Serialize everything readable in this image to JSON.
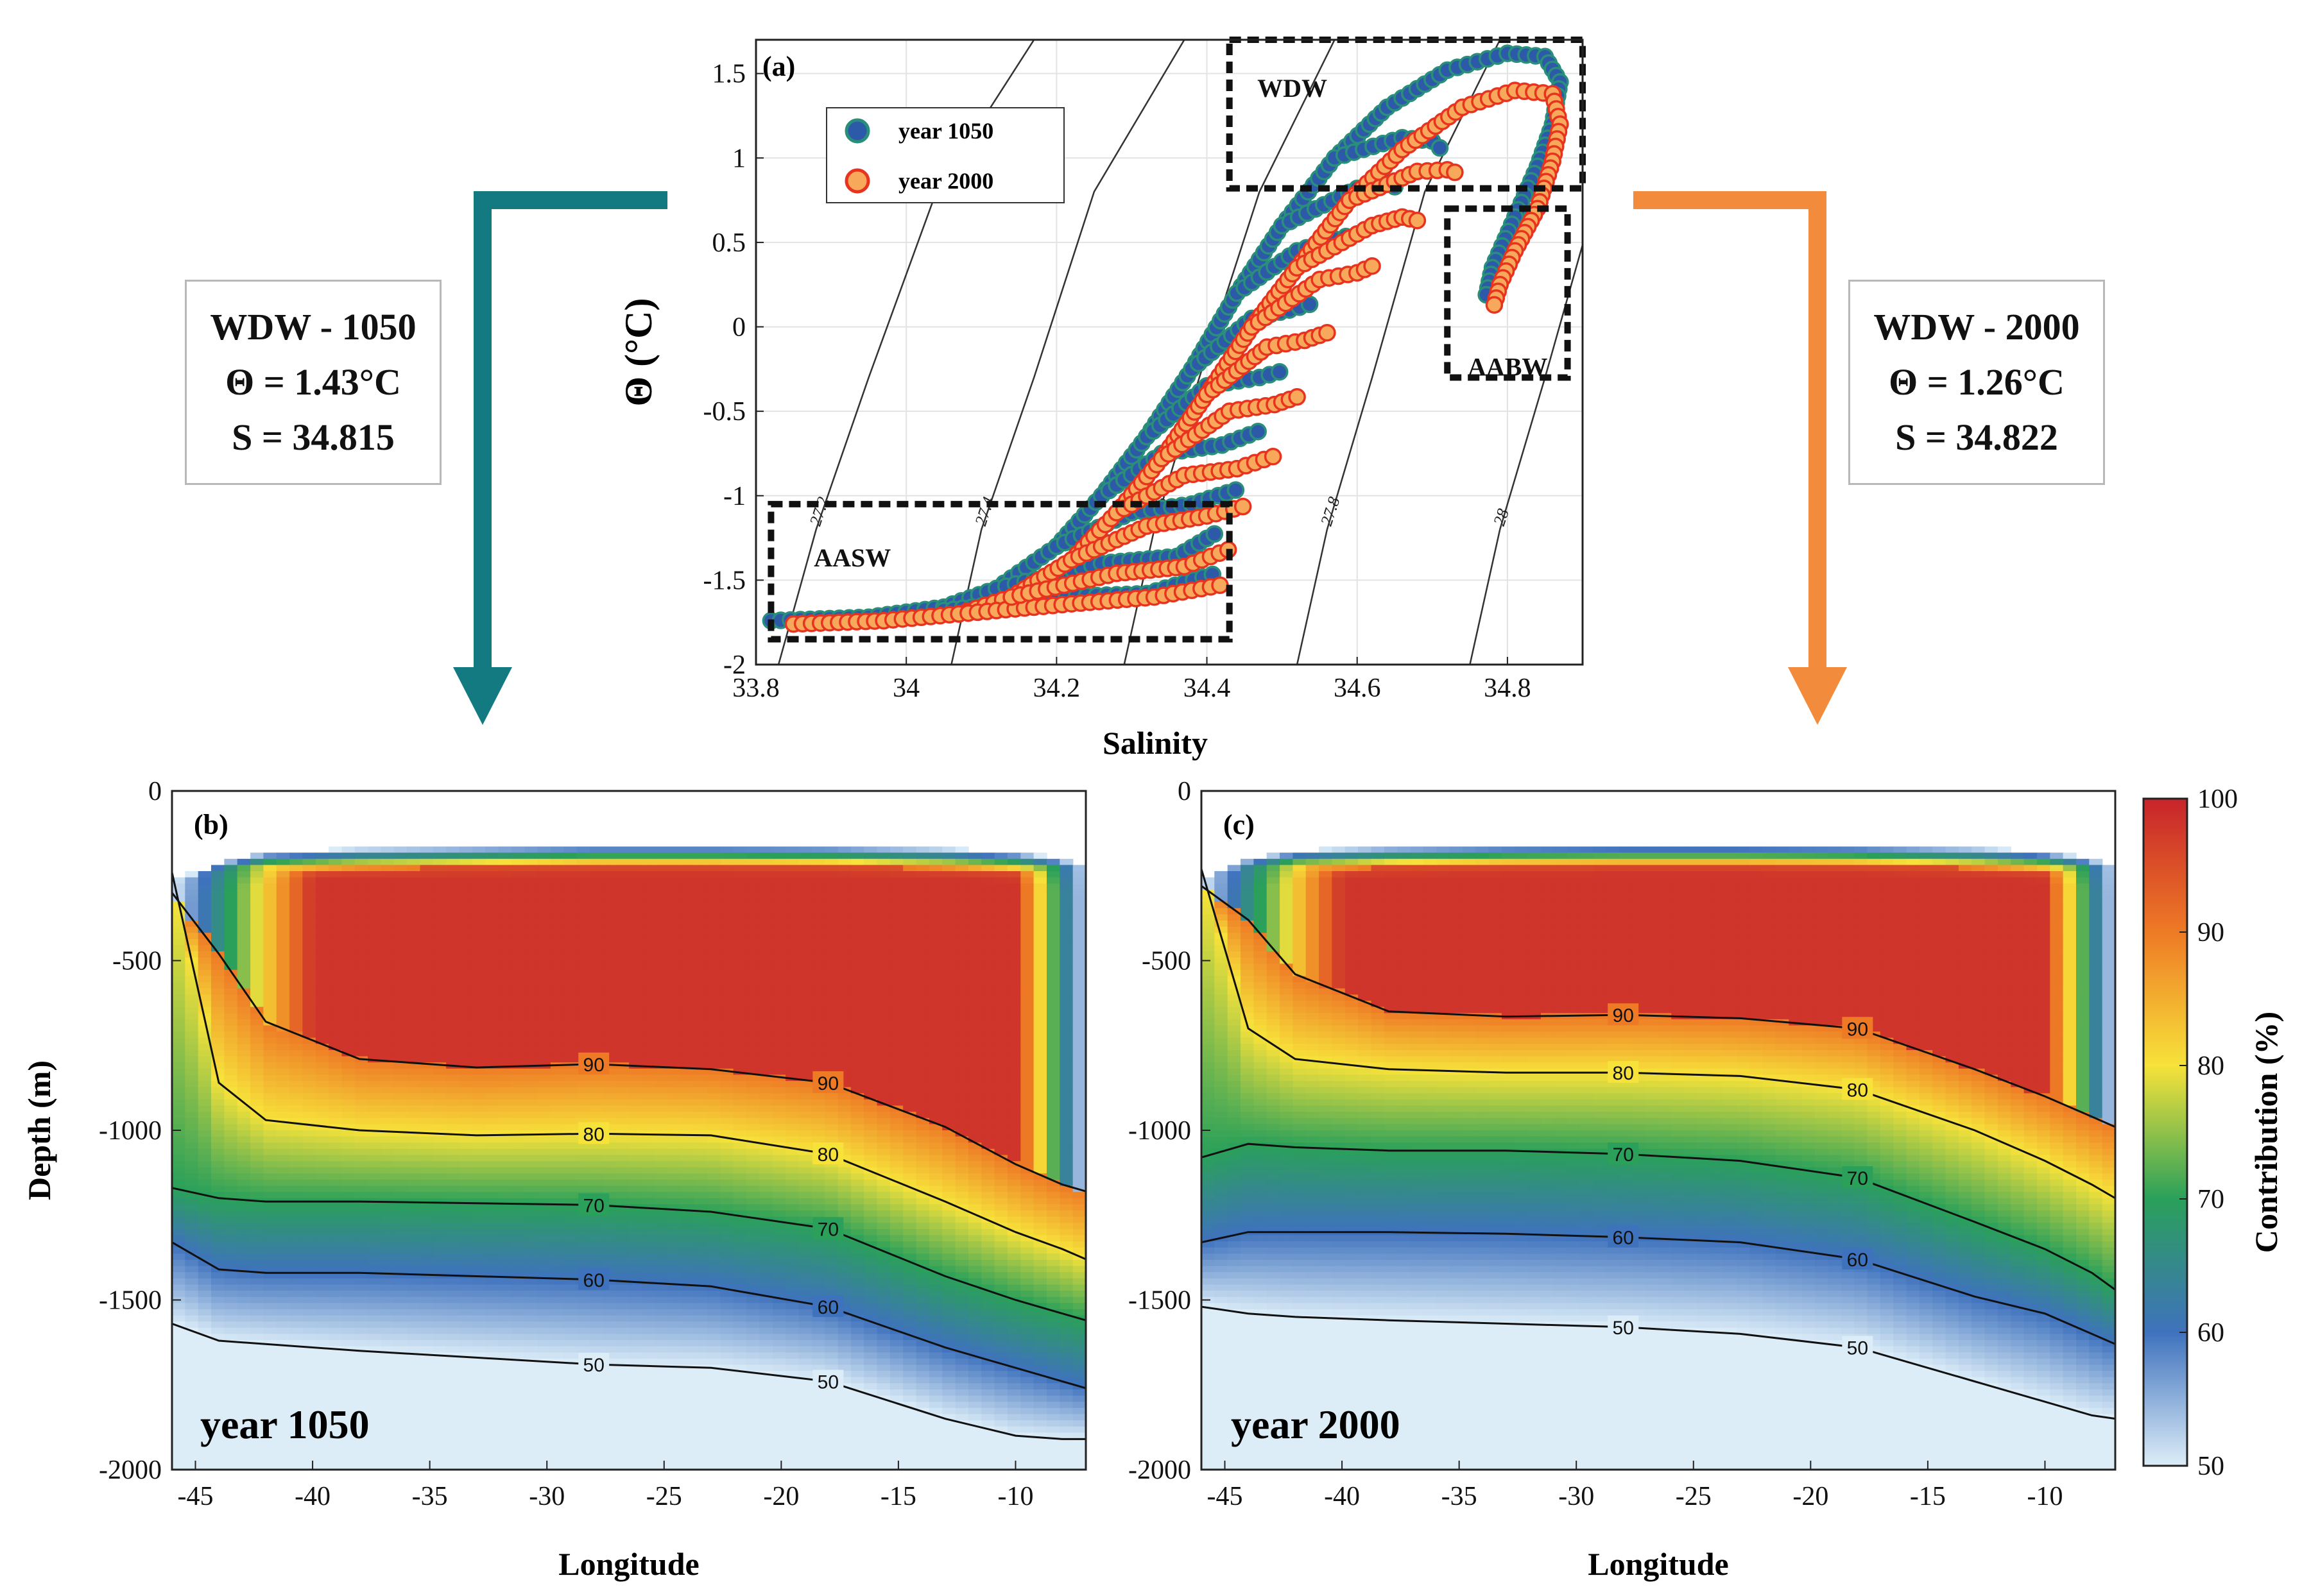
{
  "colors": {
    "teal_arrow": "#127a80",
    "orange_arrow": "#f28c3c",
    "series_1050_fill": "#2c5aa8",
    "series_1050_edge": "#2a8f7a",
    "series_2000_fill": "#f7a85a",
    "series_2000_edge": "#e8331f",
    "box_stroke": "#111111"
  },
  "info_boxes": [
    {
      "title": "WDW - 1050",
      "theta": "Θ = 1.43°C",
      "salinity": "S = 34.815"
    },
    {
      "title": "WDW - 2000",
      "theta": "Θ = 1.26°C",
      "salinity": "S = 34.822"
    }
  ],
  "chart_data": [
    {
      "type": "scatter",
      "panel_label": "(a)",
      "xlabel": "Salinity",
      "ylabel": "Θ (°C)",
      "xlim": [
        33.8,
        34.9
      ],
      "ylim": [
        -2,
        1.7
      ],
      "xticks": [
        33.8,
        34,
        34.2,
        34.4,
        34.6,
        34.8
      ],
      "xtick_labels": [
        "33.8",
        "34",
        "34.2",
        "34.4",
        "34.6",
        "34.8"
      ],
      "yticks": [
        -2,
        -1.5,
        -1,
        -0.5,
        0,
        0.5,
        1,
        1.5
      ],
      "ytick_labels": [
        "-2",
        "-1.5",
        "-1",
        "-0.5",
        "0",
        "0.5",
        "1",
        "1.5"
      ],
      "grid": true,
      "legend": {
        "position": "upper-left",
        "entries": [
          "year 1050",
          "year 2000"
        ]
      },
      "density_isopycnals": [
        {
          "label": "27.2",
          "points": [
            [
              33.83,
              -2
            ],
            [
              33.88,
              -1.2
            ],
            [
              33.95,
              -0.3
            ],
            [
              34.04,
              0.8
            ],
            [
              34.17,
              1.7
            ]
          ]
        },
        {
          "label": "27.4",
          "points": [
            [
              34.06,
              -2
            ],
            [
              34.1,
              -1.2
            ],
            [
              34.17,
              -0.3
            ],
            [
              34.25,
              0.8
            ],
            [
              34.37,
              1.7
            ]
          ]
        },
        {
          "label": "27.6",
          "points": [
            [
              34.29,
              -2
            ],
            [
              34.33,
              -1.2
            ],
            [
              34.39,
              -0.3
            ],
            [
              34.47,
              0.8
            ],
            [
              34.57,
              1.7
            ]
          ]
        },
        {
          "label": "27.8",
          "points": [
            [
              34.52,
              -2
            ],
            [
              34.56,
              -1.2
            ],
            [
              34.62,
              -0.3
            ],
            [
              34.69,
              0.8
            ],
            [
              34.79,
              1.7
            ]
          ]
        },
        {
          "label": "28",
          "points": [
            [
              34.75,
              -2
            ],
            [
              34.79,
              -1.2
            ],
            [
              34.85,
              -0.3
            ],
            [
              34.92,
              0.8
            ],
            [
              35.0,
              1.7
            ]
          ]
        }
      ],
      "water_mass_boxes": [
        {
          "name": "WDW",
          "salinity": [
            34.43,
            34.9
          ],
          "theta": [
            0.82,
            1.7
          ]
        },
        {
          "name": "AABW",
          "salinity": [
            34.72,
            34.88
          ],
          "theta": [
            -0.3,
            0.7
          ]
        },
        {
          "name": "AASW",
          "salinity": [
            33.82,
            34.43
          ],
          "theta": [
            -1.85,
            -1.05
          ]
        }
      ],
      "series": [
        {
          "name": "year 1050",
          "branches": [
            [
              [
                33.82,
                -1.74
              ],
              [
                33.95,
                -1.72
              ],
              [
                34.05,
                -1.66
              ],
              [
                34.12,
                -1.55
              ],
              [
                34.2,
                -1.3
              ],
              [
                34.26,
                -1.0
              ],
              [
                34.32,
                -0.65
              ],
              [
                34.38,
                -0.25
              ],
              [
                34.44,
                0.2
              ],
              [
                34.5,
                0.6
              ],
              [
                34.57,
                1.0
              ],
              [
                34.64,
                1.3
              ],
              [
                34.72,
                1.52
              ],
              [
                34.8,
                1.62
              ],
              [
                34.85,
                1.6
              ],
              [
                34.87,
                1.45
              ],
              [
                34.86,
                1.2
              ],
              [
                34.84,
                0.95
              ],
              [
                34.81,
                0.65
              ],
              [
                34.78,
                0.35
              ],
              [
                34.77,
                0.15
              ]
            ],
            [
              [
                34.05,
                -1.68
              ],
              [
                34.2,
                -1.6
              ],
              [
                34.32,
                -1.58
              ],
              [
                34.42,
                -1.45
              ]
            ],
            [
              [
                34.12,
                -1.55
              ],
              [
                34.26,
                -1.4
              ],
              [
                34.36,
                -1.36
              ],
              [
                34.42,
                -1.2
              ]
            ],
            [
              [
                34.2,
                -1.3
              ],
              [
                34.3,
                -1.1
              ],
              [
                34.38,
                -1.05
              ],
              [
                34.45,
                -0.95
              ]
            ],
            [
              [
                34.26,
                -1.0
              ],
              [
                34.34,
                -0.75
              ],
              [
                34.42,
                -0.7
              ],
              [
                34.48,
                -0.6
              ]
            ],
            [
              [
                34.32,
                -0.65
              ],
              [
                34.4,
                -0.35
              ],
              [
                34.47,
                -0.3
              ],
              [
                34.51,
                -0.25
              ]
            ],
            [
              [
                34.38,
                -0.25
              ],
              [
                34.46,
                0.05
              ],
              [
                34.51,
                0.1
              ],
              [
                34.55,
                0.15
              ]
            ],
            [
              [
                34.44,
                0.2
              ],
              [
                34.52,
                0.45
              ],
              [
                34.57,
                0.52
              ],
              [
                34.6,
                0.55
              ]
            ],
            [
              [
                34.5,
                0.6
              ],
              [
                34.6,
                0.82
              ],
              [
                34.64,
                0.86
              ],
              [
                34.66,
                0.8
              ]
            ],
            [
              [
                34.57,
                1.0
              ],
              [
                34.66,
                1.12
              ],
              [
                34.7,
                1.1
              ],
              [
                34.72,
                1.02
              ]
            ]
          ]
        },
        {
          "name": "year 2000",
          "branches": [
            [
              [
                33.85,
                -1.76
              ],
              [
                33.97,
                -1.74
              ],
              [
                34.07,
                -1.7
              ],
              [
                34.14,
                -1.6
              ],
              [
                34.22,
                -1.38
              ],
              [
                34.28,
                -1.1
              ],
              [
                34.34,
                -0.78
              ],
              [
                34.4,
                -0.4
              ],
              [
                34.46,
                0.0
              ],
              [
                34.52,
                0.35
              ],
              [
                34.59,
                0.75
              ],
              [
                34.66,
                1.05
              ],
              [
                34.74,
                1.3
              ],
              [
                34.81,
                1.4
              ],
              [
                34.86,
                1.38
              ],
              [
                34.87,
                1.2
              ],
              [
                34.86,
                0.98
              ],
              [
                34.84,
                0.7
              ],
              [
                34.81,
                0.45
              ],
              [
                34.79,
                0.25
              ],
              [
                34.78,
                0.09
              ]
            ],
            [
              [
                34.07,
                -1.7
              ],
              [
                34.22,
                -1.64
              ],
              [
                34.33,
                -1.6
              ],
              [
                34.43,
                -1.52
              ]
            ],
            [
              [
                34.14,
                -1.6
              ],
              [
                34.28,
                -1.46
              ],
              [
                34.37,
                -1.42
              ],
              [
                34.44,
                -1.3
              ]
            ],
            [
              [
                34.22,
                -1.38
              ],
              [
                34.32,
                -1.18
              ],
              [
                34.4,
                -1.12
              ],
              [
                34.46,
                -1.05
              ]
            ],
            [
              [
                34.28,
                -1.1
              ],
              [
                34.37,
                -0.88
              ],
              [
                34.44,
                -0.84
              ],
              [
                34.5,
                -0.75
              ]
            ],
            [
              [
                34.34,
                -0.78
              ],
              [
                34.43,
                -0.5
              ],
              [
                34.49,
                -0.46
              ],
              [
                34.53,
                -0.4
              ]
            ],
            [
              [
                34.4,
                -0.4
              ],
              [
                34.48,
                -0.12
              ],
              [
                34.53,
                -0.08
              ],
              [
                34.57,
                -0.02
              ]
            ],
            [
              [
                34.46,
                0.0
              ],
              [
                34.55,
                0.28
              ],
              [
                34.6,
                0.32
              ],
              [
                34.63,
                0.38
              ]
            ],
            [
              [
                34.52,
                0.35
              ],
              [
                34.62,
                0.6
              ],
              [
                34.66,
                0.65
              ],
              [
                34.69,
                0.62
              ]
            ],
            [
              [
                34.59,
                0.75
              ],
              [
                34.68,
                0.92
              ],
              [
                34.72,
                0.93
              ],
              [
                34.74,
                0.9
              ]
            ]
          ]
        }
      ]
    },
    {
      "type": "heatmap",
      "panel_label": "(b)",
      "annotation": "year 1050",
      "xlabel": "Longitude",
      "ylabel": "Depth (m)",
      "xlim": [
        -46,
        -7
      ],
      "ylim": [
        -2000,
        0
      ],
      "xticks": [
        -45,
        -40,
        -35,
        -30,
        -25,
        -20,
        -15,
        -10
      ],
      "xtick_labels": [
        "-45",
        "-40",
        "-35",
        "-30",
        "-25",
        "-20",
        "-15",
        "-10"
      ],
      "yticks": [
        0,
        -500,
        -1000,
        -1500,
        -2000
      ],
      "ytick_labels": [
        "0",
        "-500",
        "-1000",
        "-1500",
        "-2000"
      ],
      "contour_levels": [
        50,
        60,
        70,
        80,
        90
      ],
      "contour_labels": [
        "50",
        "60",
        "70",
        "80",
        "90"
      ],
      "longitudes": [
        -46,
        -44,
        -42,
        -38,
        -33,
        -28,
        -23,
        -18,
        -13,
        -10,
        -8,
        -7
      ],
      "top_depth": [
        -270,
        -210,
        -180,
        -170,
        -165,
        -160,
        -160,
        -162,
        -170,
        -180,
        -200,
        -230
      ],
      "isoline_depths": {
        "90": [
          -300,
          -480,
          -680,
          -790,
          -815,
          -805,
          -820,
          -860,
          -990,
          -1100,
          -1160,
          -1180
        ],
        "80": [
          -240,
          -860,
          -970,
          -1000,
          -1015,
          -1010,
          -1015,
          -1070,
          -1210,
          -1300,
          -1350,
          -1380
        ],
        "70": [
          -1170,
          -1200,
          -1210,
          -1210,
          -1215,
          -1220,
          -1240,
          -1290,
          -1430,
          -1500,
          -1540,
          -1560
        ],
        "60": [
          -1330,
          -1410,
          -1420,
          -1420,
          -1430,
          -1440,
          -1460,
          -1520,
          -1640,
          -1700,
          -1740,
          -1760
        ],
        "50": [
          -1570,
          -1620,
          -1630,
          -1650,
          -1670,
          -1690,
          -1700,
          -1740,
          -1850,
          -1900,
          -1910,
          -1910
        ]
      }
    },
    {
      "type": "heatmap",
      "panel_label": "(c)",
      "annotation": "year 2000",
      "xlabel": "Longitude",
      "ylabel": "",
      "xlim": [
        -46,
        -7
      ],
      "ylim": [
        -2000,
        0
      ],
      "xticks": [
        -45,
        -40,
        -35,
        -30,
        -25,
        -20,
        -15,
        -10
      ],
      "xtick_labels": [
        "-45",
        "-40",
        "-35",
        "-30",
        "-25",
        "-20",
        "-15",
        "-10"
      ],
      "yticks": [
        0,
        -500,
        -1000,
        -1500,
        -2000
      ],
      "ytick_labels": [
        "0",
        "-500",
        "-1000",
        "-1500",
        "-2000"
      ],
      "contour_levels": [
        50,
        60,
        70,
        80,
        90
      ],
      "contour_labels": [
        "50",
        "60",
        "70",
        "80",
        "90"
      ],
      "longitudes": [
        -46,
        -44,
        -42,
        -38,
        -33,
        -28,
        -23,
        -18,
        -13,
        -10,
        -8,
        -7
      ],
      "top_depth": [
        -260,
        -200,
        -175,
        -165,
        -160,
        -158,
        -158,
        -160,
        -168,
        -178,
        -200,
        -230
      ],
      "isoline_depths": {
        "90": [
          -280,
          -380,
          -540,
          -650,
          -665,
          -660,
          -670,
          -700,
          -820,
          -900,
          -960,
          -990
        ],
        "80": [
          -230,
          -700,
          -790,
          -820,
          -830,
          -830,
          -840,
          -880,
          -1000,
          -1090,
          -1160,
          -1200
        ],
        "70": [
          -1080,
          -1040,
          -1050,
          -1060,
          -1060,
          -1070,
          -1090,
          -1140,
          -1270,
          -1350,
          -1420,
          -1470
        ],
        "60": [
          -1330,
          -1300,
          -1300,
          -1300,
          -1305,
          -1315,
          -1330,
          -1380,
          -1490,
          -1540,
          -1600,
          -1630
        ],
        "50": [
          -1520,
          -1540,
          -1550,
          -1560,
          -1570,
          -1580,
          -1600,
          -1640,
          -1740,
          -1800,
          -1840,
          -1850
        ]
      }
    }
  ],
  "colorbar": {
    "label": "Contribution (%)",
    "range": [
      50,
      100
    ],
    "ticks": [
      50,
      60,
      70,
      80,
      90,
      100
    ],
    "tick_labels": [
      "50",
      "60",
      "70",
      "80",
      "90",
      "100"
    ]
  }
}
